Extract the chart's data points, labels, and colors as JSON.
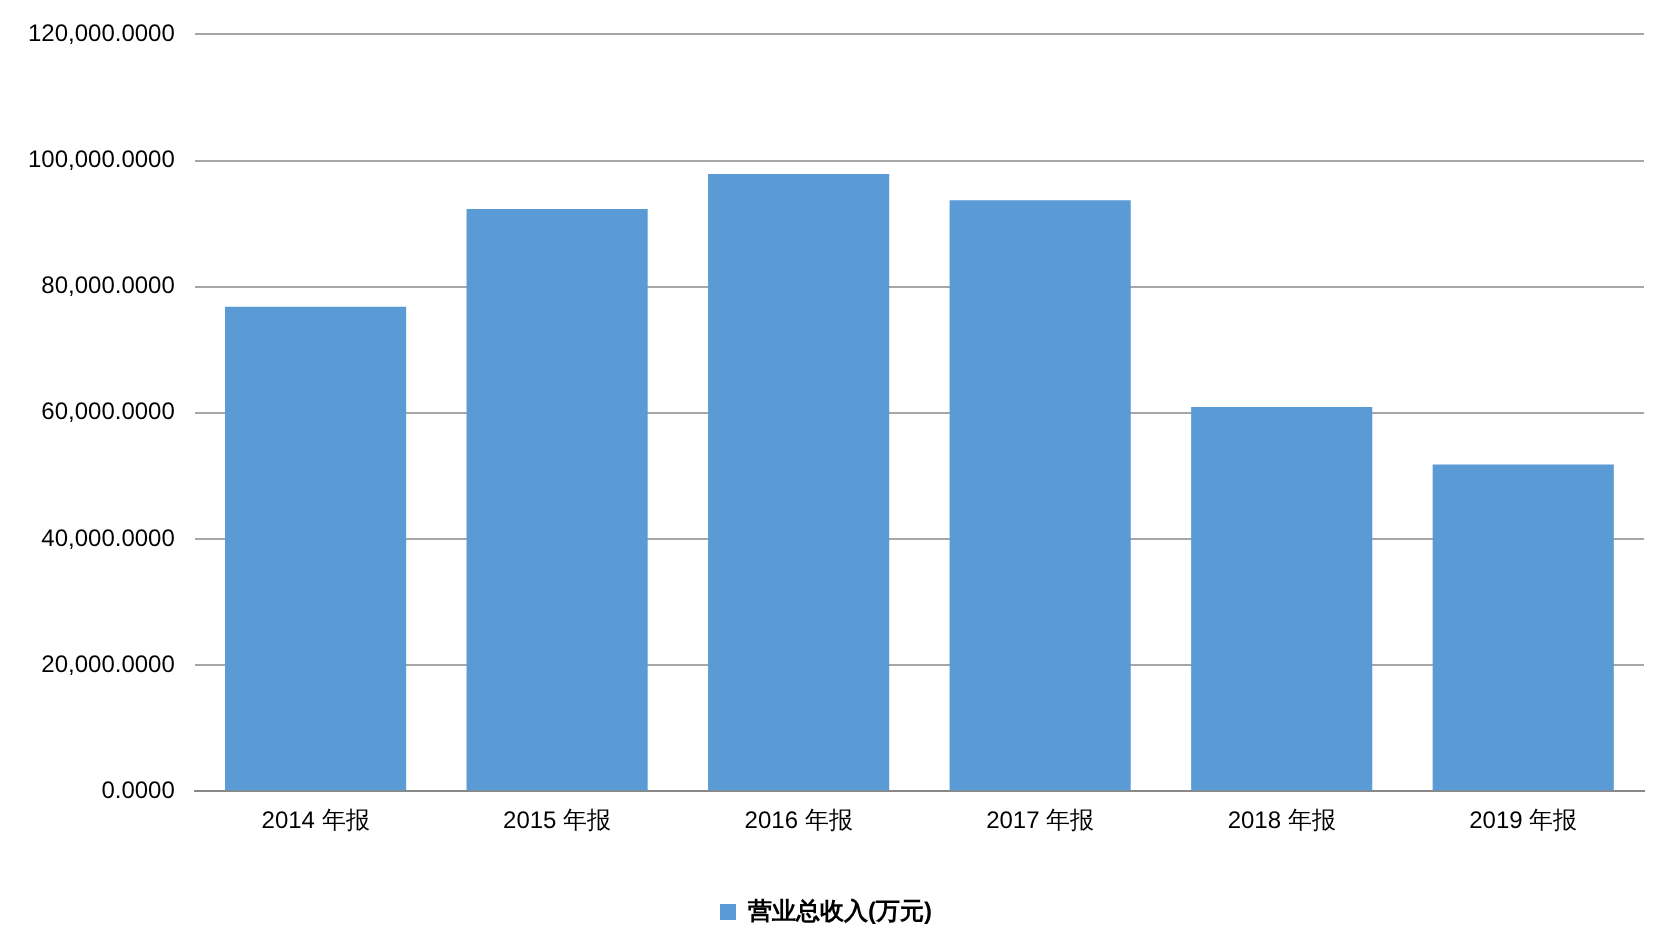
{
  "chart_data": {
    "type": "bar",
    "categories": [
      "2014 年报",
      "2015 年报",
      "2016 年报",
      "2017 年报",
      "2018 年报",
      "2019 年报"
    ],
    "series": [
      {
        "name": "营业总收入(万元)",
        "color": "#5b9bd5",
        "values": [
          76800,
          92300,
          97850,
          93700,
          60900,
          51800
        ]
      }
    ],
    "ylim": [
      0,
      120000
    ],
    "yticks": [
      {
        "value": 0,
        "label": "0.0000"
      },
      {
        "value": 20000,
        "label": "20,000.0000"
      },
      {
        "value": 40000,
        "label": "40,000.0000"
      },
      {
        "value": 60000,
        "label": "60,000.0000"
      },
      {
        "value": 80000,
        "label": "80,000.0000"
      },
      {
        "value": 100000,
        "label": "100,000.0000"
      },
      {
        "value": 120000,
        "label": "120,000.0000"
      }
    ],
    "grid": "y",
    "legend": "bottom"
  }
}
